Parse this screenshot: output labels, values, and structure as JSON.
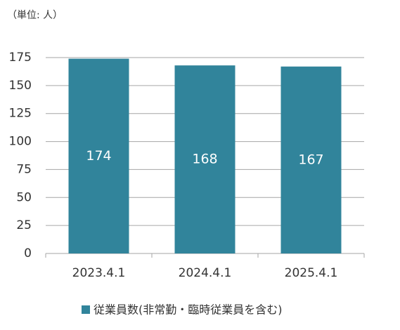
{
  "chart_data": {
    "type": "bar",
    "subtitle": "（単位: 人）",
    "categories": [
      "2023.4.1",
      "2024.4.1",
      "2025.4.1"
    ],
    "series": [
      {
        "name": "従業員数(非常勤・臨時従業員を含む)",
        "color": "#31849b",
        "values": [
          174,
          168,
          167
        ]
      }
    ],
    "ylim": [
      0,
      175
    ],
    "yticks": [
      0,
      25,
      50,
      75,
      100,
      125,
      150,
      175
    ],
    "grid": true,
    "legend": "bottom"
  }
}
